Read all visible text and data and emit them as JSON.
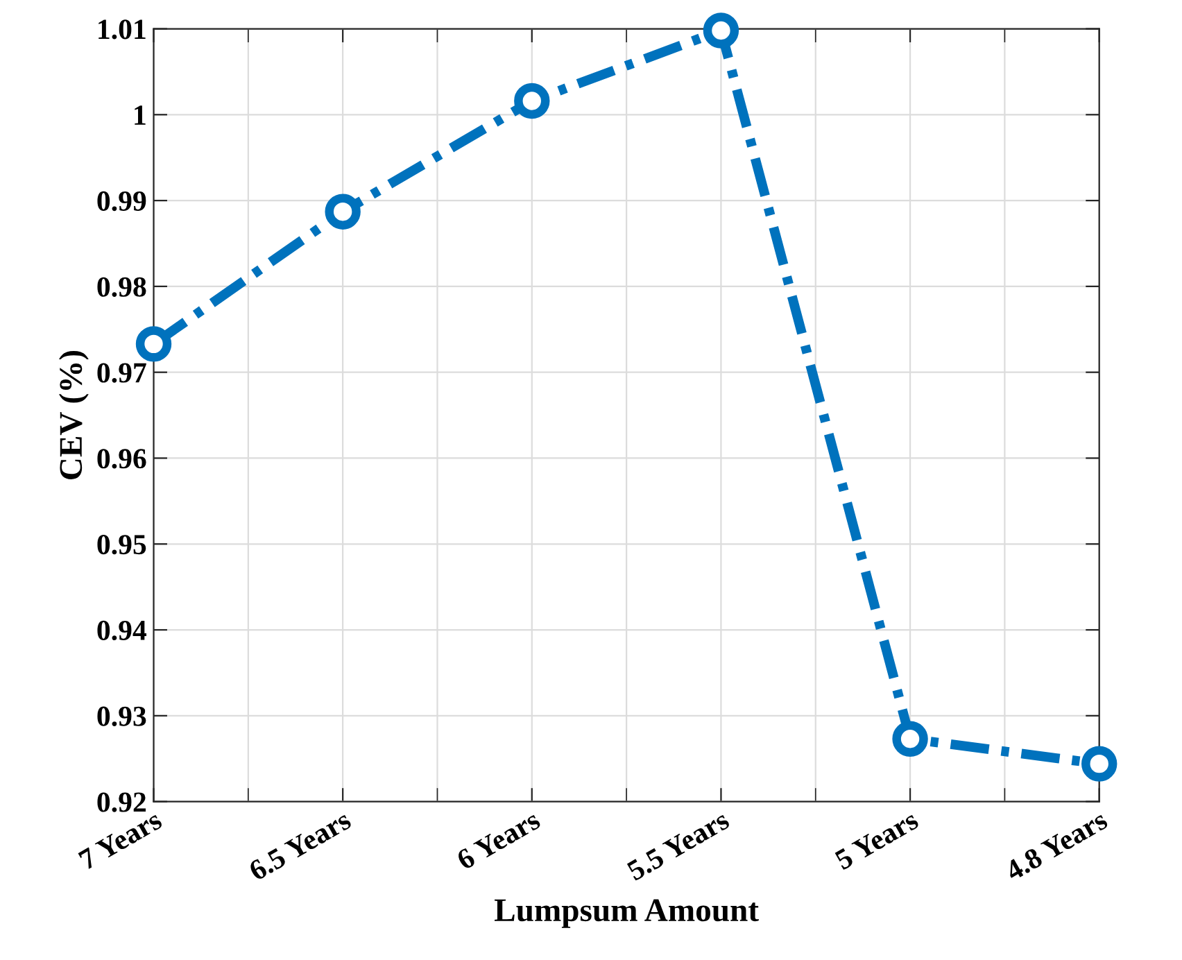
{
  "chart_data": {
    "type": "line",
    "xlabel": "Lumpsum Amount",
    "ylabel": "CEV (%)",
    "categories": [
      "7 Years",
      "6.5 Years",
      "6 Years",
      "5.5 Years",
      "5 Years",
      "4.8 Years"
    ],
    "series": [
      {
        "color": "#0072bd",
        "values": [
          0.9733,
          0.9887,
          1.0016,
          1.0098,
          0.9273,
          0.9244
        ]
      }
    ],
    "ylim": [
      0.92,
      1.01
    ],
    "yticks": [
      0.92,
      0.93,
      0.94,
      0.95,
      0.96,
      0.97,
      0.98,
      0.99,
      {
        "value": 1,
        "label": "1"
      },
      1.01
    ],
    "grid": true,
    "marker": "circle",
    "line_style": "dashdot"
  }
}
